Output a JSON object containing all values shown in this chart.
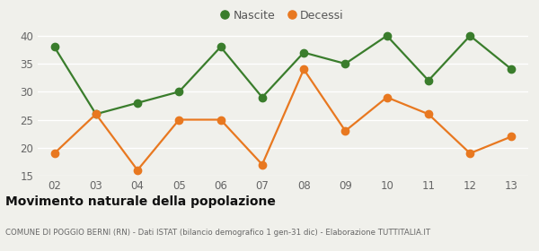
{
  "years": [
    2,
    3,
    4,
    5,
    6,
    7,
    8,
    9,
    10,
    11,
    12,
    13
  ],
  "nascite": [
    38,
    26,
    28,
    30,
    38,
    29,
    37,
    35,
    40,
    32,
    40,
    34
  ],
  "decessi": [
    19,
    26,
    16,
    25,
    25,
    17,
    34,
    23,
    29,
    26,
    19,
    22
  ],
  "nascite_color": "#3a7d2c",
  "decessi_color": "#e87820",
  "background_color": "#f0f0eb",
  "grid_color": "#ffffff",
  "ylim": [
    15,
    41
  ],
  "yticks": [
    15,
    20,
    25,
    30,
    35,
    40
  ],
  "title": "Movimento naturale della popolazione",
  "subtitle": "COMUNE DI POGGIO BERNI (RN) - Dati ISTAT (bilancio demografico 1 gen-31 dic) - Elaborazione TUTTITALIA.IT",
  "legend_nascite": "Nascite",
  "legend_decessi": "Decessi",
  "marker_size": 6,
  "line_width": 1.6
}
